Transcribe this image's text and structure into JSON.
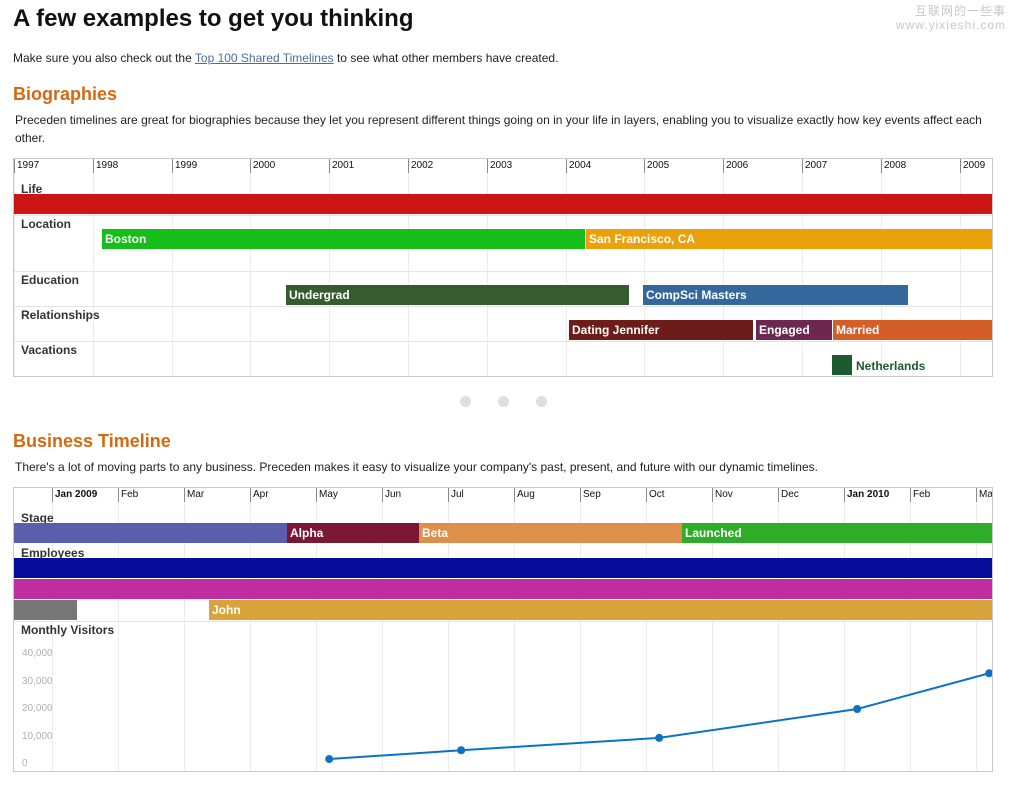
{
  "page": {
    "title": "A few examples to get you thinking",
    "watermark_line1": "互联网的一些事",
    "watermark_line2": "www.yixieshi.com",
    "intro_prefix": "Make sure you also check out the ",
    "intro_link": "Top 100 Shared Timelines",
    "intro_suffix": " to see what other members have created."
  },
  "biographies": {
    "heading": "Biographies",
    "description": "Preceden timelines are great for biographies because they let you represent different things going on in your life in layers, enabling you to visualize exactly how key events affect each other.",
    "years": [
      "1997",
      "1998",
      "1999",
      "2000",
      "2001",
      "2002",
      "2003",
      "2004",
      "2005",
      "2006",
      "2007",
      "2008",
      "2009"
    ],
    "lanes": {
      "life": "Life",
      "location": "Location",
      "education": "Education",
      "relationships": "Relationships",
      "vacations": "Vacations"
    },
    "bars": {
      "boston": "Boston",
      "sf": "San Francisco, CA",
      "undergrad": "Undergrad",
      "compsci": "CompSci Masters",
      "dating": "Dating Jennifer",
      "engaged": "Engaged",
      "married": "Married",
      "netherlands": "Netherlands"
    }
  },
  "carousel": {
    "dots": 3
  },
  "business": {
    "heading": "Business Timeline",
    "description": "There's a lot of moving parts to any business. Preceden makes it easy to visualize your company's past, present, and future with our dynamic timelines.",
    "months": [
      "Jan 2009",
      "Feb",
      "Mar",
      "Apr",
      "May",
      "Jun",
      "Jul",
      "Aug",
      "Sep",
      "Oct",
      "Nov",
      "Dec",
      "Jan 2010",
      "Feb",
      "Mar"
    ],
    "lanes": {
      "stage": "Stage",
      "employees": "Employees",
      "visitors": "Monthly Visitors"
    },
    "bars": {
      "alpha": "Alpha",
      "beta": "Beta",
      "launched": "Launched",
      "john": "John"
    }
  },
  "chart_data": {
    "type": "line",
    "title": "Monthly Visitors",
    "xlabel": "",
    "ylabel": "",
    "ylim": [
      0,
      40000
    ],
    "yticks": [
      "40,000",
      "30,000",
      "20,000",
      "10,000",
      "0"
    ],
    "x": [
      "May 2009",
      "Jul 2009",
      "Oct 2009",
      "Jan 2010",
      "Mar 2010"
    ],
    "series": [
      {
        "values": [
          1800,
          5000,
          9500,
          20000,
          33000
        ]
      }
    ]
  },
  "colors": {
    "heading": "#d46a10",
    "life": "#cc1316",
    "boston": "#15be18",
    "sf": "#eba10c",
    "undergrad": "#355b2e",
    "compsci": "#34689c",
    "dating": "#6d1c19",
    "engaged": "#6e2750",
    "married": "#d35e28",
    "netherlands": "#1d5a30",
    "stage_base": "#5b5eac",
    "alpha": "#7b1732",
    "beta": "#dd8f4b",
    "launched": "#2fad28",
    "emp1": "#070c9a",
    "emp2": "#bf2da0",
    "emp3_gray": "#777777",
    "john": "#d9a33b",
    "line": "#0c72c4"
  }
}
